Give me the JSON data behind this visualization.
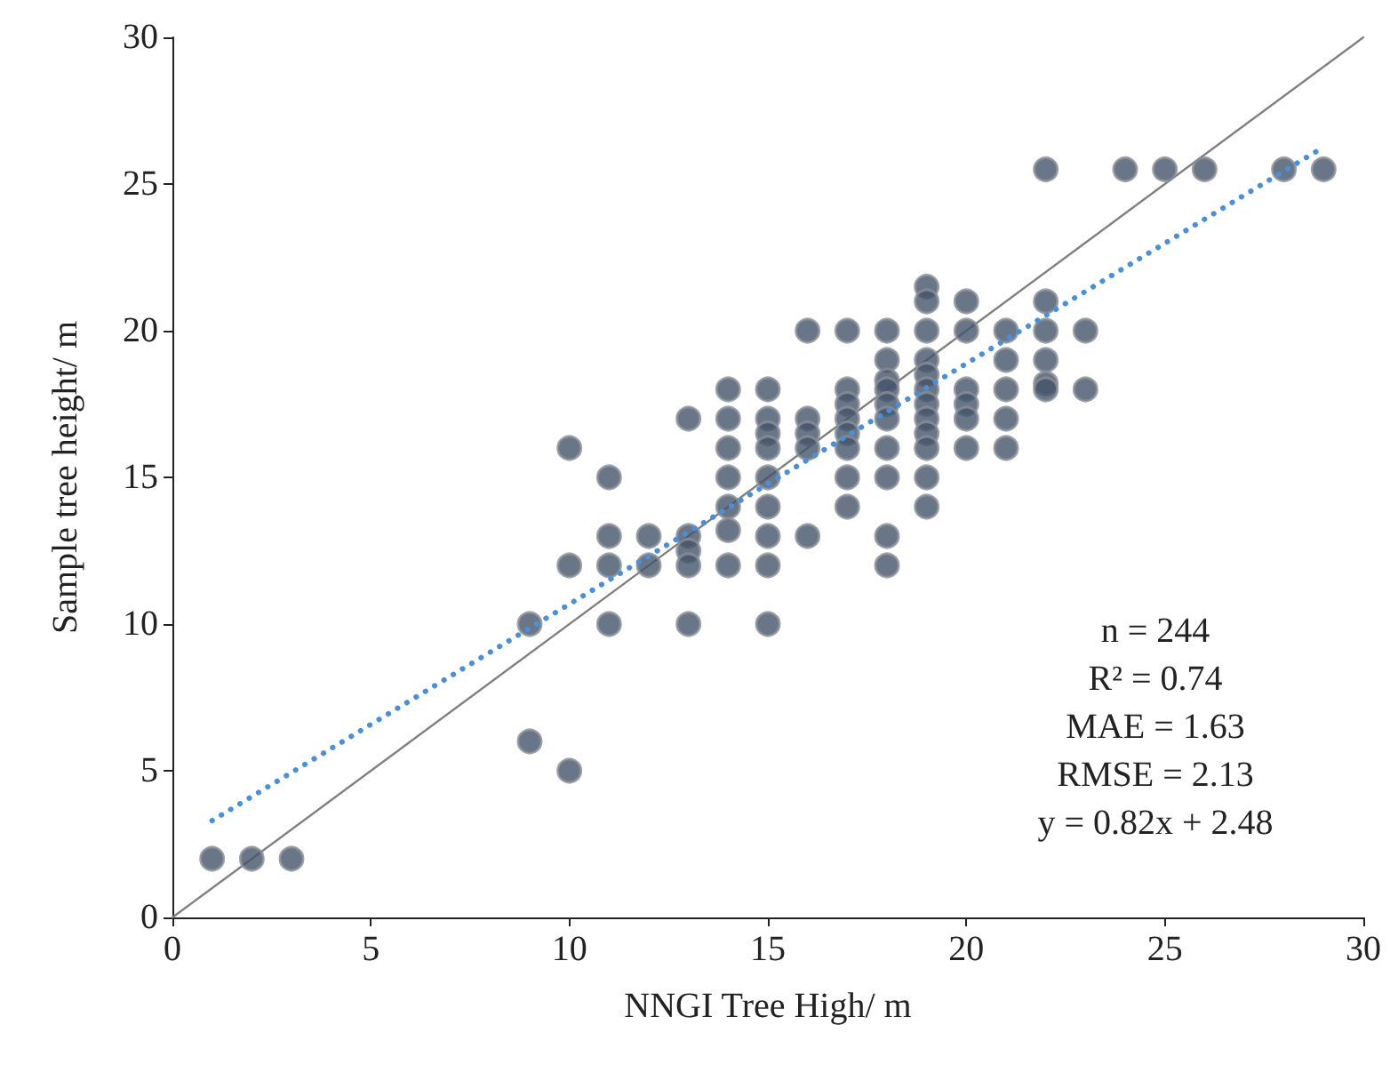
{
  "chart_data": {
    "type": "scatter",
    "xlabel": "NNGI Tree High/ m",
    "ylabel": "Sample tree height/ m",
    "xlim": [
      0,
      30
    ],
    "ylim": [
      0,
      30
    ],
    "xticks": [
      0,
      5,
      10,
      15,
      20,
      25,
      30
    ],
    "yticks": [
      0,
      5,
      10,
      15,
      20,
      25,
      30
    ],
    "grid": false,
    "annotations": [
      "n = 244",
      "R² = 0.74",
      "MAE = 1.63",
      "RMSE = 2.13",
      "y = 0.82x + 2.48"
    ],
    "series": [
      {
        "color": "#44546a",
        "marker": "circle",
        "x": [
          1,
          2,
          3,
          9,
          9,
          10,
          10,
          10,
          11,
          11,
          11,
          11,
          12,
          12,
          13,
          13,
          13,
          13,
          13,
          14,
          14,
          14,
          14,
          14,
          14,
          14,
          15,
          15,
          15,
          15,
          15,
          15,
          15,
          15,
          15,
          16,
          16,
          16,
          16,
          16,
          17,
          17,
          17,
          17,
          17,
          17,
          17,
          17,
          18,
          18,
          18,
          18,
          18,
          18,
          18,
          18,
          18,
          18,
          19,
          19,
          19,
          19,
          19,
          19,
          19,
          19,
          19,
          19,
          19,
          19,
          20,
          20,
          20,
          20,
          20,
          20,
          21,
          21,
          21,
          21,
          21,
          22,
          22,
          22,
          22,
          22,
          22,
          23,
          23,
          24,
          25,
          26,
          28,
          29
        ],
        "values": [
          2,
          2,
          2,
          10,
          6,
          16,
          12,
          5,
          15,
          13,
          12,
          10,
          13,
          12,
          17,
          13,
          12.5,
          12,
          10,
          18,
          17,
          16,
          15,
          14,
          13.2,
          12,
          18,
          17,
          16.5,
          16,
          15,
          14,
          13,
          12,
          10,
          20,
          17,
          16.5,
          16,
          13,
          20,
          18,
          17.5,
          17,
          16.5,
          16,
          15,
          14,
          20,
          19,
          18.3,
          18,
          17.5,
          17,
          16,
          15,
          13,
          12,
          21.5,
          21,
          20,
          19,
          18.5,
          18,
          17.5,
          17,
          16.5,
          16,
          15,
          14,
          21,
          20,
          18,
          17.5,
          17,
          16,
          20,
          19,
          18,
          17,
          16,
          25.5,
          21,
          20,
          19,
          18.2,
          18,
          20,
          18,
          25.5,
          25.5,
          25.5,
          25.5,
          25.5
        ]
      },
      {
        "type": "line",
        "color": "#808080",
        "marker": "none",
        "line_style": "solid",
        "x": [
          0,
          30
        ],
        "values": [
          0,
          30
        ]
      },
      {
        "type": "line",
        "color": "#4a90d9",
        "marker": "none",
        "line_style": "dotted",
        "x": [
          1,
          29
        ],
        "values": [
          3.3,
          26.26
        ]
      }
    ]
  }
}
